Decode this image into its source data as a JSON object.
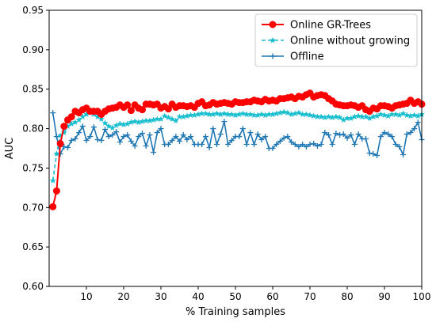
{
  "chart_data": {
    "type": "line",
    "xlabel": "% Training samples",
    "ylabel": "AUC",
    "xlim": [
      0,
      100
    ],
    "ylim": [
      0.6,
      0.95
    ],
    "xticks": [
      10,
      20,
      30,
      40,
      50,
      60,
      70,
      80,
      90,
      100
    ],
    "yticks": [
      0.6,
      0.65,
      0.7,
      0.75,
      0.8,
      0.85,
      0.9,
      0.95
    ],
    "ytick_labels": [
      "0.60",
      "0.65",
      "0.70",
      "0.75",
      "0.80",
      "0.85",
      "0.90",
      "0.95"
    ],
    "grid": false,
    "legend_position": "top-right",
    "x": [
      1,
      2,
      3,
      4,
      5,
      6,
      7,
      8,
      9,
      10,
      11,
      12,
      13,
      14,
      15,
      16,
      17,
      18,
      19,
      20,
      21,
      22,
      23,
      24,
      25,
      26,
      27,
      28,
      29,
      30,
      31,
      32,
      33,
      34,
      35,
      36,
      37,
      38,
      39,
      40,
      41,
      42,
      43,
      44,
      45,
      46,
      47,
      48,
      49,
      50,
      51,
      52,
      53,
      54,
      55,
      56,
      57,
      58,
      59,
      60,
      61,
      62,
      63,
      64,
      65,
      66,
      67,
      68,
      69,
      70,
      71,
      72,
      73,
      74,
      75,
      76,
      77,
      78,
      79,
      80,
      81,
      82,
      83,
      84,
      85,
      86,
      87,
      88,
      89,
      90,
      91,
      92,
      93,
      94,
      95,
      96,
      97,
      98,
      99,
      100
    ],
    "series": [
      {
        "name": "Online GR-Trees",
        "color": "#ff0000",
        "line_style": "solid",
        "marker": "circle",
        "values": [
          0.701,
          0.721,
          0.781,
          0.803,
          0.811,
          0.815,
          0.822,
          0.82,
          0.824,
          0.826,
          0.822,
          0.822,
          0.822,
          0.818,
          0.822,
          0.825,
          0.826,
          0.827,
          0.83,
          0.827,
          0.83,
          0.823,
          0.83,
          0.826,
          0.824,
          0.831,
          0.831,
          0.83,
          0.831,
          0.826,
          0.828,
          0.825,
          0.831,
          0.827,
          0.829,
          0.829,
          0.828,
          0.829,
          0.827,
          0.832,
          0.834,
          0.829,
          0.83,
          0.833,
          0.831,
          0.832,
          0.833,
          0.832,
          0.831,
          0.834,
          0.833,
          0.833,
          0.834,
          0.834,
          0.836,
          0.835,
          0.834,
          0.837,
          0.835,
          0.836,
          0.835,
          0.838,
          0.838,
          0.839,
          0.84,
          0.838,
          0.841,
          0.84,
          0.843,
          0.845,
          0.84,
          0.842,
          0.843,
          0.842,
          0.838,
          0.835,
          0.831,
          0.83,
          0.829,
          0.829,
          0.83,
          0.829,
          0.827,
          0.829,
          0.824,
          0.822,
          0.826,
          0.825,
          0.829,
          0.829,
          0.828,
          0.826,
          0.829,
          0.83,
          0.831,
          0.832,
          0.836,
          0.832,
          0.834,
          0.831
        ]
      },
      {
        "name": "Online without growing",
        "color": "#17becf",
        "line_style": "dashed",
        "marker": "star",
        "values": [
          0.734,
          0.768,
          0.791,
          0.795,
          0.803,
          0.806,
          0.808,
          0.811,
          0.815,
          0.818,
          0.82,
          0.818,
          0.815,
          0.812,
          0.807,
          0.803,
          0.801,
          0.804,
          0.806,
          0.805,
          0.806,
          0.808,
          0.809,
          0.808,
          0.809,
          0.81,
          0.81,
          0.811,
          0.812,
          0.812,
          0.816,
          0.814,
          0.812,
          0.81,
          0.815,
          0.815,
          0.816,
          0.817,
          0.817,
          0.818,
          0.819,
          0.819,
          0.818,
          0.818,
          0.819,
          0.818,
          0.819,
          0.818,
          0.818,
          0.817,
          0.818,
          0.819,
          0.818,
          0.818,
          0.817,
          0.817,
          0.818,
          0.817,
          0.818,
          0.818,
          0.819,
          0.82,
          0.821,
          0.82,
          0.818,
          0.819,
          0.82,
          0.818,
          0.818,
          0.817,
          0.816,
          0.815,
          0.815,
          0.814,
          0.815,
          0.814,
          0.815,
          0.814,
          0.811,
          0.813,
          0.813,
          0.815,
          0.816,
          0.815,
          0.815,
          0.813,
          0.815,
          0.816,
          0.818,
          0.817,
          0.816,
          0.818,
          0.818,
          0.817,
          0.819,
          0.817,
          0.816,
          0.817,
          0.816,
          0.818
        ]
      },
      {
        "name": "Offline",
        "color": "#1f77b4",
        "line_style": "solid",
        "marker": "plus",
        "values": [
          0.82,
          0.79,
          0.768,
          0.777,
          0.776,
          0.785,
          0.787,
          0.795,
          0.803,
          0.785,
          0.79,
          0.802,
          0.786,
          0.785,
          0.799,
          0.79,
          0.792,
          0.796,
          0.783,
          0.79,
          0.792,
          0.784,
          0.778,
          0.79,
          0.794,
          0.778,
          0.792,
          0.77,
          0.795,
          0.8,
          0.78,
          0.78,
          0.785,
          0.79,
          0.784,
          0.792,
          0.786,
          0.79,
          0.78,
          0.78,
          0.78,
          0.79,
          0.776,
          0.8,
          0.78,
          0.793,
          0.809,
          0.78,
          0.785,
          0.79,
          0.79,
          0.8,
          0.78,
          0.795,
          0.78,
          0.793,
          0.786,
          0.79,
          0.775,
          0.775,
          0.78,
          0.784,
          0.788,
          0.79,
          0.783,
          0.78,
          0.777,
          0.78,
          0.777,
          0.78,
          0.781,
          0.778,
          0.78,
          0.795,
          0.792,
          0.78,
          0.794,
          0.792,
          0.793,
          0.788,
          0.792,
          0.78,
          0.793,
          0.787,
          0.787,
          0.769,
          0.768,
          0.766,
          0.79,
          0.795,
          0.793,
          0.79,
          0.78,
          0.777,
          0.767,
          0.793,
          0.795,
          0.8,
          0.808,
          0.786
        ]
      }
    ]
  }
}
